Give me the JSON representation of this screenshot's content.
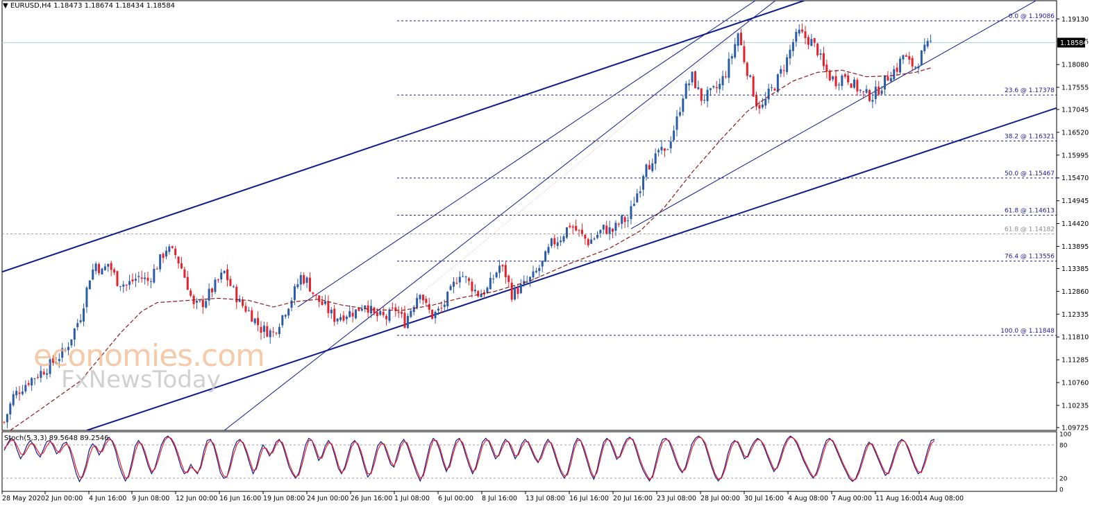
{
  "header": {
    "symbol": "EURUSD,H4",
    "ohlc": "1.18473 1.18674 1.18434 1.18584"
  },
  "stochastic": {
    "label": "Stoch(5,3,3) 89.5648 89.2546",
    "scale_labels": [
      "100",
      "80",
      "20",
      "0"
    ],
    "levels": [
      80,
      20
    ],
    "main": [
      70,
      82,
      92,
      88,
      70,
      55,
      65,
      80,
      88,
      80,
      65,
      58,
      72,
      86,
      88,
      78,
      64,
      70,
      82,
      85,
      72,
      50,
      28,
      14,
      25,
      45,
      72,
      82,
      75,
      62,
      72,
      88,
      94,
      86,
      70,
      45,
      28,
      15,
      25,
      50,
      78,
      88,
      80,
      62,
      42,
      28,
      38,
      60,
      80,
      92,
      96,
      90,
      78,
      60,
      40,
      28,
      32,
      45,
      35,
      28,
      42,
      70,
      88,
      90,
      78,
      55,
      30,
      20,
      22,
      45,
      72,
      86,
      90,
      82,
      65,
      45,
      28,
      40,
      65,
      80,
      72,
      60,
      70,
      85,
      90,
      80,
      60,
      40,
      28,
      20,
      30,
      55,
      80,
      92,
      88,
      70,
      52,
      60,
      78,
      88,
      80,
      60,
      38,
      28,
      40,
      62,
      82,
      88,
      80,
      62,
      40,
      22,
      30,
      55,
      78,
      86,
      80,
      62,
      45,
      40,
      62,
      82,
      90,
      80,
      62,
      45,
      28,
      15,
      28,
      55,
      80,
      92,
      86,
      70,
      48,
      32,
      45,
      70,
      88,
      92,
      80,
      60,
      42,
      28,
      40,
      65,
      85,
      92,
      86,
      70,
      55,
      62,
      80,
      90,
      85,
      70,
      55,
      65,
      82,
      90,
      84,
      70,
      56,
      48,
      62,
      80,
      90,
      82,
      64,
      45,
      30,
      20,
      30,
      55,
      80,
      92,
      88,
      70,
      50,
      30,
      18,
      35,
      62,
      85,
      92,
      86,
      70,
      54,
      60,
      78,
      90,
      94,
      88,
      70,
      50,
      35,
      24,
      15,
      25,
      50,
      75,
      90,
      92,
      86,
      70,
      52,
      38,
      30,
      40,
      62,
      82,
      92,
      96,
      92,
      80,
      60,
      40,
      24,
      15,
      22,
      40,
      65,
      82,
      88,
      84,
      70,
      55,
      60,
      76,
      86,
      92,
      88,
      76,
      60,
      45,
      32,
      40,
      58,
      78,
      90,
      96,
      92,
      82,
      68,
      52,
      40,
      28,
      20,
      30,
      50,
      72,
      88,
      92,
      86,
      72,
      58,
      44,
      32,
      20,
      14,
      20,
      35,
      55,
      75,
      85,
      80,
      66,
      52,
      38,
      25,
      30,
      48,
      68,
      84,
      90,
      86,
      72,
      56,
      40,
      28,
      32,
      50,
      72,
      88,
      90
    ],
    "signal": [
      74,
      80,
      88,
      88,
      78,
      64,
      62,
      72,
      82,
      82,
      72,
      62,
      66,
      78,
      86,
      82,
      70,
      66,
      76,
      82,
      76,
      60,
      38,
      22,
      22,
      38,
      60,
      76,
      78,
      68,
      68,
      82,
      90,
      88,
      76,
      56,
      36,
      20,
      22,
      42,
      68,
      84,
      82,
      68,
      48,
      32,
      36,
      52,
      72,
      88,
      94,
      92,
      82,
      66,
      48,
      32,
      30,
      40,
      36,
      30,
      38,
      60,
      82,
      88,
      82,
      62,
      38,
      24,
      22,
      38,
      62,
      80,
      88,
      84,
      70,
      52,
      34,
      36,
      56,
      74,
      74,
      64,
      66,
      80,
      88,
      84,
      66,
      46,
      32,
      22,
      26,
      46,
      70,
      88,
      88,
      76,
      58,
      56,
      72,
      84,
      82,
      66,
      44,
      30,
      36,
      54,
      76,
      86,
      82,
      68,
      46,
      28,
      28,
      46,
      70,
      82,
      82,
      68,
      50,
      42,
      54,
      76,
      86,
      84,
      68,
      50,
      34,
      20,
      24,
      46,
      72,
      88,
      88,
      76,
      54,
      36,
      40,
      62,
      82,
      90,
      84,
      66,
      48,
      32,
      36,
      56,
      78,
      88,
      88,
      76,
      60,
      60,
      74,
      86,
      86,
      76,
      60,
      62,
      76,
      86,
      86,
      74,
      60,
      50,
      56,
      74,
      86,
      84,
      70,
      50,
      34,
      24,
      26,
      46,
      72,
      88,
      88,
      76,
      56,
      36,
      22,
      30,
      54,
      78,
      90,
      88,
      76,
      58,
      58,
      72,
      86,
      92,
      90,
      76,
      56,
      40,
      28,
      18,
      22,
      42,
      66,
      84,
      90,
      88,
      76,
      58,
      42,
      32,
      36,
      54,
      74,
      88,
      94,
      92,
      84,
      66,
      46,
      28,
      18,
      20,
      34,
      56,
      76,
      86,
      86,
      74,
      60,
      58,
      70,
      82,
      90,
      88,
      80,
      64,
      50,
      36,
      38,
      52,
      72,
      86,
      94,
      92,
      86,
      72,
      56,
      44,
      32,
      22,
      26,
      42,
      64,
      82,
      90,
      88,
      76,
      62,
      48,
      36,
      24,
      16,
      18,
      30,
      48,
      68,
      82,
      82,
      70,
      56,
      42,
      30,
      28,
      42,
      62,
      78,
      88,
      86,
      76,
      60,
      44,
      32,
      30,
      44,
      64,
      82,
      88
    ]
  },
  "chart_data": {
    "type": "candlestick",
    "title": "EURUSD,H4",
    "ylim": [
      1.0966,
      1.1931
    ],
    "y_ticks": [
      "1.19130",
      "1.18605",
      "1.18080",
      "1.17555",
      "1.17045",
      "1.16520",
      "1.15995",
      "1.15470",
      "1.14945",
      "1.14420",
      "1.13895",
      "1.13385",
      "1.12860",
      "1.12335",
      "1.11810",
      "1.11285",
      "1.10760",
      "1.10235",
      "1.09725"
    ],
    "x_tick_labels": [
      "28 May 2020",
      "2 Jun 00:00",
      "4 Jun 16:00",
      "9 Jun 08:00",
      "12 Jun 00:00",
      "16 Jun 16:00",
      "19 Jun 08:00",
      "24 Jun 00:00",
      "26 Jun 16:00",
      "1 Jul 08:00",
      "6 Jul 00:00",
      "8 Jul 16:00",
      "13 Jul 08:00",
      "16 Jul 16:00",
      "20 Jul 16:00",
      "23 Jul 08:00",
      "28 Jul 00:00",
      "30 Jul 16:00",
      "4 Aug 08:00",
      "7 Aug 00:00",
      "11 Aug 16:00",
      "14 Aug 08:00"
    ],
    "current_price": "1.18584",
    "fibonacci_levels": [
      {
        "label": "0.0 @ 1.19086",
        "value": 1.19086
      },
      {
        "label": "23.6 @ 1.17378",
        "value": 1.17378
      },
      {
        "label": "38.2 @ 1.16321",
        "value": 1.16321
      },
      {
        "label": "50.0 @ 1.15467",
        "value": 1.15467
      },
      {
        "label": "61.8 @ 1.14613",
        "value": 1.14613
      },
      {
        "label": "76.4 @ 1.13556",
        "value": 1.13556
      },
      {
        "label": "100.0 @ 1.11848",
        "value": 1.11848
      }
    ],
    "extra_level": {
      "label": "61.8 @ 1.14182",
      "value": 1.14182
    },
    "close_path": [
      [
        0,
        1.0985
      ],
      [
        3,
        1.1045
      ],
      [
        8,
        1.108
      ],
      [
        14,
        1.111
      ],
      [
        20,
        1.115
      ],
      [
        25,
        1.123
      ],
      [
        28,
        1.132
      ],
      [
        30,
        1.135
      ],
      [
        32,
        1.133
      ],
      [
        34,
        1.135
      ],
      [
        37,
        1.131
      ],
      [
        40,
        1.13
      ],
      [
        44,
        1.132
      ],
      [
        47,
        1.131
      ],
      [
        50,
        1.1345
      ],
      [
        53,
        1.1385
      ],
      [
        56,
        1.137
      ],
      [
        58,
        1.134
      ],
      [
        60,
        1.13
      ],
      [
        62,
        1.125
      ],
      [
        65,
        1.126
      ],
      [
        68,
        1.129
      ],
      [
        72,
        1.133
      ],
      [
        74,
        1.13
      ],
      [
        77,
        1.126
      ],
      [
        80,
        1.124
      ],
      [
        84,
        1.12
      ],
      [
        88,
        1.119
      ],
      [
        91,
        1.123
      ],
      [
        94,
        1.127
      ],
      [
        97,
        1.132
      ],
      [
        99,
        1.131
      ],
      [
        102,
        1.127
      ],
      [
        105,
        1.125
      ],
      [
        108,
        1.1225
      ],
      [
        112,
        1.1235
      ],
      [
        115,
        1.124
      ],
      [
        118,
        1.126
      ],
      [
        121,
        1.123
      ],
      [
        125,
        1.1225
      ],
      [
        128,
        1.1245
      ],
      [
        131,
        1.1215
      ],
      [
        134,
        1.126
      ],
      [
        136,
        1.129
      ],
      [
        138,
        1.125
      ],
      [
        140,
        1.123
      ],
      [
        143,
        1.1245
      ],
      [
        146,
        1.1285
      ],
      [
        149,
        1.133
      ],
      [
        152,
        1.1305
      ],
      [
        155,
        1.128
      ],
      [
        158,
        1.129
      ],
      [
        162,
        1.1345
      ],
      [
        164,
        1.1325
      ],
      [
        166,
        1.128
      ],
      [
        170,
        1.13
      ],
      [
        173,
        1.132
      ],
      [
        176,
        1.135
      ],
      [
        179,
        1.1395
      ],
      [
        182,
        1.141
      ],
      [
        185,
        1.144
      ],
      [
        188,
        1.142
      ],
      [
        191,
        1.14
      ],
      [
        193,
        1.141
      ],
      [
        196,
        1.143
      ],
      [
        199,
        1.1425
      ],
      [
        202,
        1.145
      ],
      [
        204,
        1.145
      ],
      [
        206,
        1.1495
      ],
      [
        208,
        1.153
      ],
      [
        210,
        1.159
      ],
      [
        212,
        1.157
      ],
      [
        214,
        1.161
      ],
      [
        216,
        1.16
      ],
      [
        218,
        1.164
      ],
      [
        220,
        1.168
      ],
      [
        222,
        1.174
      ],
      [
        225,
        1.178
      ],
      [
        228,
        1.173
      ],
      [
        231,
        1.174
      ],
      [
        234,
        1.176
      ],
      [
        236,
        1.179
      ],
      [
        238,
        1.183
      ],
      [
        240,
        1.188
      ],
      [
        242,
        1.182
      ],
      [
        244,
        1.177
      ],
      [
        246,
        1.172
      ],
      [
        248,
        1.171
      ],
      [
        250,
        1.174
      ],
      [
        252,
        1.176
      ],
      [
        254,
        1.179
      ],
      [
        256,
        1.182
      ],
      [
        258,
        1.186
      ],
      [
        260,
        1.188
      ],
      [
        262,
        1.187
      ],
      [
        264,
        1.186
      ],
      [
        266,
        1.184
      ],
      [
        268,
        1.18
      ],
      [
        270,
        1.178
      ],
      [
        272,
        1.177
      ],
      [
        275,
        1.1785
      ],
      [
        278,
        1.176
      ],
      [
        281,
        1.174
      ],
      [
        284,
        1.1735
      ],
      [
        287,
        1.176
      ],
      [
        290,
        1.179
      ],
      [
        292,
        1.18
      ],
      [
        294,
        1.183
      ],
      [
        296,
        1.181
      ],
      [
        298,
        1.1805
      ],
      [
        300,
        1.183
      ],
      [
        302,
        1.185
      ],
      [
        303,
        1.18584
      ]
    ],
    "moving_average": [
      [
        2,
        1.0966
      ],
      [
        10,
        1.1005
      ],
      [
        25,
        1.108
      ],
      [
        38,
        1.119
      ],
      [
        45,
        1.124
      ],
      [
        50,
        1.126
      ],
      [
        60,
        1.1265
      ],
      [
        70,
        1.127
      ],
      [
        80,
        1.1265
      ],
      [
        88,
        1.125
      ],
      [
        95,
        1.1262
      ],
      [
        103,
        1.1268
      ],
      [
        110,
        1.1255
      ],
      [
        120,
        1.1244
      ],
      [
        130,
        1.1242
      ],
      [
        140,
        1.1254
      ],
      [
        150,
        1.1272
      ],
      [
        160,
        1.1285
      ],
      [
        172,
        1.131
      ],
      [
        185,
        1.135
      ],
      [
        198,
        1.1385
      ],
      [
        208,
        1.1425
      ],
      [
        216,
        1.148
      ],
      [
        225,
        1.156
      ],
      [
        235,
        1.164
      ],
      [
        243,
        1.17
      ],
      [
        250,
        1.1735
      ],
      [
        258,
        1.177
      ],
      [
        266,
        1.179
      ],
      [
        274,
        1.1795
      ],
      [
        282,
        1.178
      ],
      [
        290,
        1.1782
      ],
      [
        298,
        1.179
      ],
      [
        303,
        1.18
      ]
    ]
  }
}
